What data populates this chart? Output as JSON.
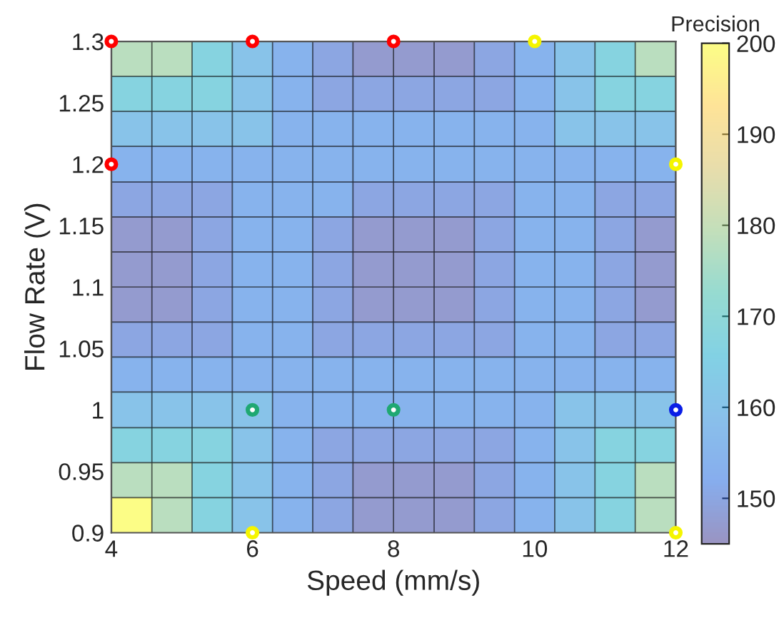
{
  "chart_data": {
    "type": "heatmap",
    "xlabel": "Speed (mm/s)",
    "ylabel": "Flow Rate (V)",
    "clabel": "Precision",
    "x": [
      4.29,
      4.86,
      5.43,
      6,
      6.57,
      7.14,
      7.71,
      8.29,
      8.86,
      9.43,
      10,
      10.57,
      11.14,
      11.71
    ],
    "y": [
      1.286,
      1.257,
      1.229,
      1.2,
      1.171,
      1.143,
      1.114,
      1.086,
      1.057,
      1.029,
      1.0,
      0.971,
      0.943,
      0.914
    ],
    "xlim": [
      4,
      12
    ],
    "xticks": [
      4,
      6,
      8,
      10,
      12
    ],
    "ylim": [
      0.9,
      1.3
    ],
    "yticks": [
      0.9,
      0.95,
      1,
      1.05,
      1.1,
      1.15,
      1.2,
      1.25,
      1.3
    ],
    "clim": [
      145,
      200
    ],
    "cticks": [
      150,
      160,
      170,
      180,
      190,
      200
    ],
    "cells": [
      [
        178,
        178,
        167,
        160,
        154,
        150,
        147,
        147,
        147,
        150,
        154,
        160,
        167,
        178
      ],
      [
        167,
        167,
        167,
        160,
        154,
        150,
        150,
        150,
        150,
        150,
        154,
        160,
        167,
        167
      ],
      [
        160,
        160,
        160,
        160,
        154,
        154,
        154,
        154,
        154,
        154,
        154,
        160,
        160,
        160
      ],
      [
        154,
        154,
        154,
        154,
        154,
        154,
        154,
        154,
        154,
        154,
        154,
        154,
        154,
        154
      ],
      [
        150,
        150,
        150,
        154,
        154,
        154,
        150,
        150,
        150,
        150,
        154,
        154,
        150,
        150
      ],
      [
        147,
        147,
        150,
        154,
        154,
        150,
        147,
        147,
        147,
        150,
        154,
        154,
        150,
        147
      ],
      [
        147,
        147,
        150,
        154,
        154,
        150,
        147,
        147,
        147,
        150,
        154,
        154,
        150,
        147
      ],
      [
        147,
        147,
        150,
        154,
        154,
        150,
        147,
        147,
        147,
        150,
        154,
        154,
        150,
        147
      ],
      [
        150,
        150,
        150,
        154,
        154,
        150,
        150,
        150,
        150,
        150,
        154,
        154,
        150,
        150
      ],
      [
        154,
        154,
        154,
        154,
        154,
        154,
        154,
        154,
        154,
        154,
        154,
        154,
        154,
        154
      ],
      [
        160,
        160,
        160,
        160,
        154,
        154,
        154,
        154,
        154,
        154,
        154,
        160,
        160,
        160
      ],
      [
        167,
        167,
        167,
        160,
        154,
        150,
        150,
        150,
        150,
        150,
        154,
        160,
        167,
        167
      ],
      [
        178,
        178,
        167,
        160,
        154,
        150,
        147,
        147,
        147,
        150,
        154,
        160,
        167,
        178
      ],
      [
        200,
        178,
        167,
        160,
        154,
        150,
        147,
        147,
        147,
        150,
        154,
        160,
        167,
        178
      ]
    ],
    "series": [
      {
        "type": "scatter",
        "color": "#ff0000",
        "x": [
          4,
          6,
          8,
          4
        ],
        "values": [
          1.3,
          1.3,
          1.3,
          1.2
        ]
      },
      {
        "type": "scatter",
        "color": "#f5f500",
        "x": [
          10,
          12,
          6,
          12
        ],
        "values": [
          1.3,
          1.2,
          0.9,
          0.9
        ]
      },
      {
        "type": "scatter",
        "color": "#1fa872",
        "x": [
          6,
          8
        ],
        "values": [
          1.0,
          1.0
        ]
      },
      {
        "type": "scatter",
        "color": "#0a1ee6",
        "x": [
          12
        ],
        "values": [
          1.0
        ]
      }
    ],
    "marker": "circle",
    "grid": false,
    "legend": false
  }
}
